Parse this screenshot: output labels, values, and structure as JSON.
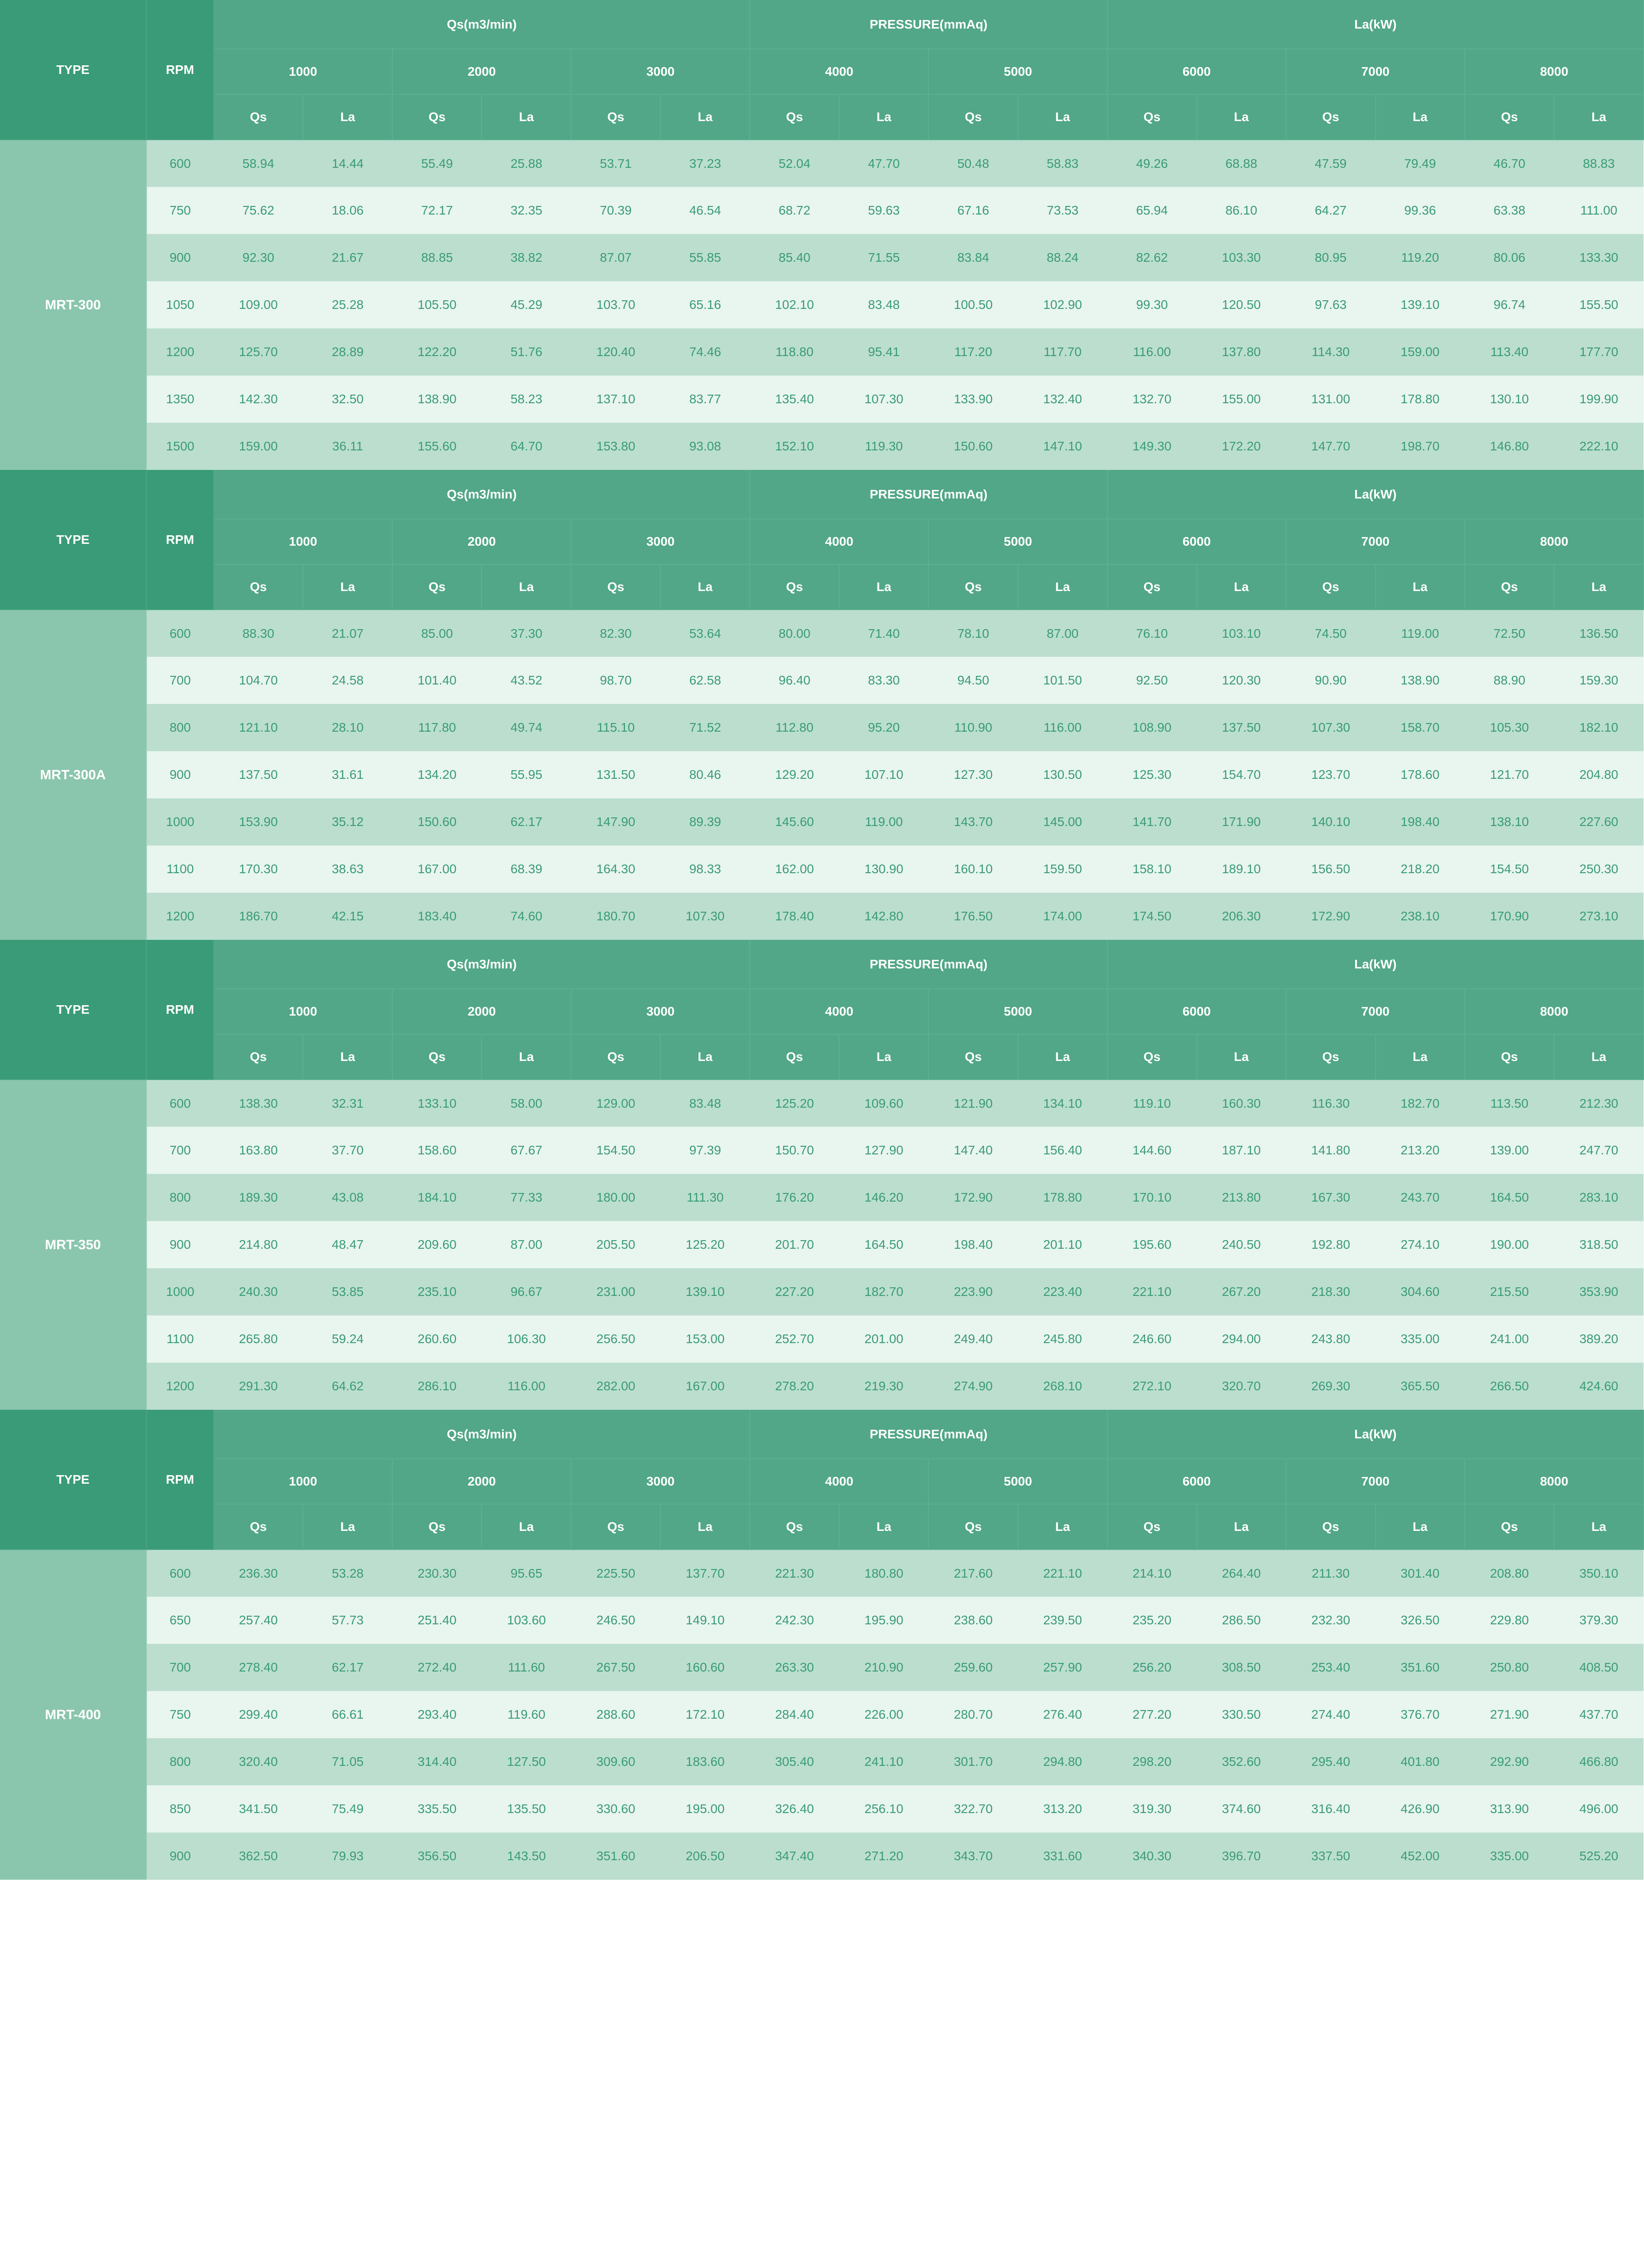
{
  "colors": {
    "header_dark_bg": "#399b77",
    "header_mid_bg": "#51a787",
    "type_bg": "#8ac5ad",
    "row_odd_bg": "#bbdecf",
    "row_even_bg": "#e9f5ef",
    "text_white": "#ffffff",
    "text_green": "#399b77"
  },
  "labels": {
    "type": "TYPE",
    "rpm": "RPM",
    "qs_group": "Qs(m3/min)",
    "pressure_group": "PRESSURE(mmAq)",
    "la_group": "La(kW)",
    "qs": "Qs",
    "la": "La"
  },
  "pressure_cols": [
    "1000",
    "2000",
    "3000",
    "4000",
    "5000",
    "6000",
    "7000",
    "8000"
  ],
  "sections": [
    {
      "type": "MRT-300",
      "rows": [
        {
          "rpm": "600",
          "v": [
            "58.94",
            "14.44",
            "55.49",
            "25.88",
            "53.71",
            "37.23",
            "52.04",
            "47.70",
            "50.48",
            "58.83",
            "49.26",
            "68.88",
            "47.59",
            "79.49",
            "46.70",
            "88.83"
          ]
        },
        {
          "rpm": "750",
          "v": [
            "75.62",
            "18.06",
            "72.17",
            "32.35",
            "70.39",
            "46.54",
            "68.72",
            "59.63",
            "67.16",
            "73.53",
            "65.94",
            "86.10",
            "64.27",
            "99.36",
            "63.38",
            "111.00"
          ]
        },
        {
          "rpm": "900",
          "v": [
            "92.30",
            "21.67",
            "88.85",
            "38.82",
            "87.07",
            "55.85",
            "85.40",
            "71.55",
            "83.84",
            "88.24",
            "82.62",
            "103.30",
            "80.95",
            "119.20",
            "80.06",
            "133.30"
          ]
        },
        {
          "rpm": "1050",
          "v": [
            "109.00",
            "25.28",
            "105.50",
            "45.29",
            "103.70",
            "65.16",
            "102.10",
            "83.48",
            "100.50",
            "102.90",
            "99.30",
            "120.50",
            "97.63",
            "139.10",
            "96.74",
            "155.50"
          ]
        },
        {
          "rpm": "1200",
          "v": [
            "125.70",
            "28.89",
            "122.20",
            "51.76",
            "120.40",
            "74.46",
            "118.80",
            "95.41",
            "117.20",
            "117.70",
            "116.00",
            "137.80",
            "114.30",
            "159.00",
            "113.40",
            "177.70"
          ]
        },
        {
          "rpm": "1350",
          "v": [
            "142.30",
            "32.50",
            "138.90",
            "58.23",
            "137.10",
            "83.77",
            "135.40",
            "107.30",
            "133.90",
            "132.40",
            "132.70",
            "155.00",
            "131.00",
            "178.80",
            "130.10",
            "199.90"
          ]
        },
        {
          "rpm": "1500",
          "v": [
            "159.00",
            "36.11",
            "155.60",
            "64.70",
            "153.80",
            "93.08",
            "152.10",
            "119.30",
            "150.60",
            "147.10",
            "149.30",
            "172.20",
            "147.70",
            "198.70",
            "146.80",
            "222.10"
          ]
        }
      ]
    },
    {
      "type": "MRT-300A",
      "rows": [
        {
          "rpm": "600",
          "v": [
            "88.30",
            "21.07",
            "85.00",
            "37.30",
            "82.30",
            "53.64",
            "80.00",
            "71.40",
            "78.10",
            "87.00",
            "76.10",
            "103.10",
            "74.50",
            "119.00",
            "72.50",
            "136.50"
          ]
        },
        {
          "rpm": "700",
          "v": [
            "104.70",
            "24.58",
            "101.40",
            "43.52",
            "98.70",
            "62.58",
            "96.40",
            "83.30",
            "94.50",
            "101.50",
            "92.50",
            "120.30",
            "90.90",
            "138.90",
            "88.90",
            "159.30"
          ]
        },
        {
          "rpm": "800",
          "v": [
            "121.10",
            "28.10",
            "117.80",
            "49.74",
            "115.10",
            "71.52",
            "112.80",
            "95.20",
            "110.90",
            "116.00",
            "108.90",
            "137.50",
            "107.30",
            "158.70",
            "105.30",
            "182.10"
          ]
        },
        {
          "rpm": "900",
          "v": [
            "137.50",
            "31.61",
            "134.20",
            "55.95",
            "131.50",
            "80.46",
            "129.20",
            "107.10",
            "127.30",
            "130.50",
            "125.30",
            "154.70",
            "123.70",
            "178.60",
            "121.70",
            "204.80"
          ]
        },
        {
          "rpm": "1000",
          "v": [
            "153.90",
            "35.12",
            "150.60",
            "62.17",
            "147.90",
            "89.39",
            "145.60",
            "119.00",
            "143.70",
            "145.00",
            "141.70",
            "171.90",
            "140.10",
            "198.40",
            "138.10",
            "227.60"
          ]
        },
        {
          "rpm": "1100",
          "v": [
            "170.30",
            "38.63",
            "167.00",
            "68.39",
            "164.30",
            "98.33",
            "162.00",
            "130.90",
            "160.10",
            "159.50",
            "158.10",
            "189.10",
            "156.50",
            "218.20",
            "154.50",
            "250.30"
          ]
        },
        {
          "rpm": "1200",
          "v": [
            "186.70",
            "42.15",
            "183.40",
            "74.60",
            "180.70",
            "107.30",
            "178.40",
            "142.80",
            "176.50",
            "174.00",
            "174.50",
            "206.30",
            "172.90",
            "238.10",
            "170.90",
            "273.10"
          ]
        }
      ]
    },
    {
      "type": "MRT-350",
      "rows": [
        {
          "rpm": "600",
          "v": [
            "138.30",
            "32.31",
            "133.10",
            "58.00",
            "129.00",
            "83.48",
            "125.20",
            "109.60",
            "121.90",
            "134.10",
            "119.10",
            "160.30",
            "116.30",
            "182.70",
            "113.50",
            "212.30"
          ]
        },
        {
          "rpm": "700",
          "v": [
            "163.80",
            "37.70",
            "158.60",
            "67.67",
            "154.50",
            "97.39",
            "150.70",
            "127.90",
            "147.40",
            "156.40",
            "144.60",
            "187.10",
            "141.80",
            "213.20",
            "139.00",
            "247.70"
          ]
        },
        {
          "rpm": "800",
          "v": [
            "189.30",
            "43.08",
            "184.10",
            "77.33",
            "180.00",
            "111.30",
            "176.20",
            "146.20",
            "172.90",
            "178.80",
            "170.10",
            "213.80",
            "167.30",
            "243.70",
            "164.50",
            "283.10"
          ]
        },
        {
          "rpm": "900",
          "v": [
            "214.80",
            "48.47",
            "209.60",
            "87.00",
            "205.50",
            "125.20",
            "201.70",
            "164.50",
            "198.40",
            "201.10",
            "195.60",
            "240.50",
            "192.80",
            "274.10",
            "190.00",
            "318.50"
          ]
        },
        {
          "rpm": "1000",
          "v": [
            "240.30",
            "53.85",
            "235.10",
            "96.67",
            "231.00",
            "139.10",
            "227.20",
            "182.70",
            "223.90",
            "223.40",
            "221.10",
            "267.20",
            "218.30",
            "304.60",
            "215.50",
            "353.90"
          ]
        },
        {
          "rpm": "1100",
          "v": [
            "265.80",
            "59.24",
            "260.60",
            "106.30",
            "256.50",
            "153.00",
            "252.70",
            "201.00",
            "249.40",
            "245.80",
            "246.60",
            "294.00",
            "243.80",
            "335.00",
            "241.00",
            "389.20"
          ]
        },
        {
          "rpm": "1200",
          "v": [
            "291.30",
            "64.62",
            "286.10",
            "116.00",
            "282.00",
            "167.00",
            "278.20",
            "219.30",
            "274.90",
            "268.10",
            "272.10",
            "320.70",
            "269.30",
            "365.50",
            "266.50",
            "424.60"
          ]
        }
      ]
    },
    {
      "type": "MRT-400",
      "rows": [
        {
          "rpm": "600",
          "v": [
            "236.30",
            "53.28",
            "230.30",
            "95.65",
            "225.50",
            "137.70",
            "221.30",
            "180.80",
            "217.60",
            "221.10",
            "214.10",
            "264.40",
            "211.30",
            "301.40",
            "208.80",
            "350.10"
          ]
        },
        {
          "rpm": "650",
          "v": [
            "257.40",
            "57.73",
            "251.40",
            "103.60",
            "246.50",
            "149.10",
            "242.30",
            "195.90",
            "238.60",
            "239.50",
            "235.20",
            "286.50",
            "232.30",
            "326.50",
            "229.80",
            "379.30"
          ]
        },
        {
          "rpm": "700",
          "v": [
            "278.40",
            "62.17",
            "272.40",
            "111.60",
            "267.50",
            "160.60",
            "263.30",
            "210.90",
            "259.60",
            "257.90",
            "256.20",
            "308.50",
            "253.40",
            "351.60",
            "250.80",
            "408.50"
          ]
        },
        {
          "rpm": "750",
          "v": [
            "299.40",
            "66.61",
            "293.40",
            "119.60",
            "288.60",
            "172.10",
            "284.40",
            "226.00",
            "280.70",
            "276.40",
            "277.20",
            "330.50",
            "274.40",
            "376.70",
            "271.90",
            "437.70"
          ]
        },
        {
          "rpm": "800",
          "v": [
            "320.40",
            "71.05",
            "314.40",
            "127.50",
            "309.60",
            "183.60",
            "305.40",
            "241.10",
            "301.70",
            "294.80",
            "298.20",
            "352.60",
            "295.40",
            "401.80",
            "292.90",
            "466.80"
          ]
        },
        {
          "rpm": "850",
          "v": [
            "341.50",
            "75.49",
            "335.50",
            "135.50",
            "330.60",
            "195.00",
            "326.40",
            "256.10",
            "322.70",
            "313.20",
            "319.30",
            "374.60",
            "316.40",
            "426.90",
            "313.90",
            "496.00"
          ]
        },
        {
          "rpm": "900",
          "v": [
            "362.50",
            "79.93",
            "356.50",
            "143.50",
            "351.60",
            "206.50",
            "347.40",
            "271.20",
            "343.70",
            "331.60",
            "340.30",
            "396.70",
            "337.50",
            "452.00",
            "335.00",
            "525.20"
          ]
        }
      ]
    }
  ]
}
